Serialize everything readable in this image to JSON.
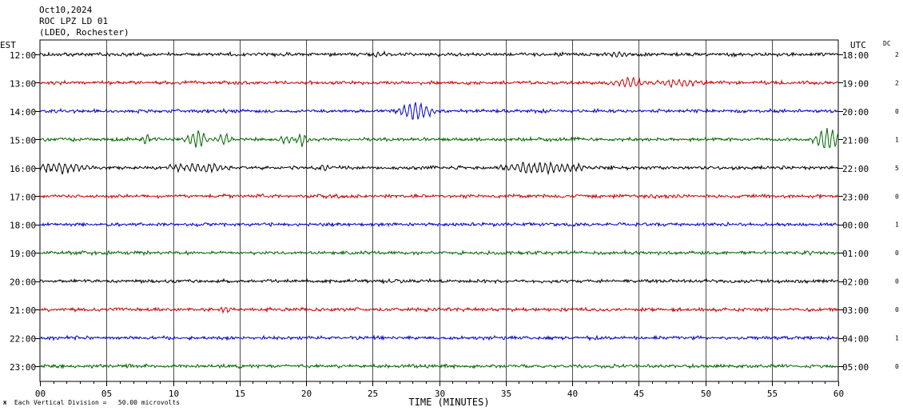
{
  "header": {
    "date": "Oct10,2024",
    "station": "ROC LPZ LD 01",
    "network": "(LDEO, Rochester)"
  },
  "chart_data": {
    "type": "line",
    "left_axis_label": "EST",
    "right_axis_label": "UTC",
    "dc_label": "DC",
    "xlabel": "TIME (MINUTES)",
    "xticks": [
      "00",
      "05",
      "10",
      "15",
      "20",
      "25",
      "30",
      "35",
      "40",
      "45",
      "50",
      "55",
      "60"
    ],
    "xlim": [
      0,
      60
    ],
    "grid": true,
    "colors": [
      "#000000",
      "#cc0000",
      "#0000cc",
      "#006600"
    ],
    "rows": [
      {
        "est": "12:00",
        "utc": "18:00",
        "dc": "2",
        "events": [
          {
            "t": 25.5,
            "amp": 4,
            "dur": 0.6
          },
          {
            "t": 43.3,
            "amp": 4,
            "dur": 0.5
          }
        ]
      },
      {
        "est": "13:00",
        "utc": "19:00",
        "dc": "2",
        "events": [
          {
            "t": 44.3,
            "amp": 7,
            "dur": 1.3
          },
          {
            "t": 48.0,
            "amp": 5,
            "dur": 1.8
          }
        ]
      },
      {
        "est": "14:00",
        "utc": "20:00",
        "dc": "0",
        "events": [
          {
            "t": 28.3,
            "amp": 12,
            "dur": 1.4
          }
        ]
      },
      {
        "est": "15:00",
        "utc": "21:00",
        "dc": "1",
        "events": [
          {
            "t": 8.0,
            "amp": 8,
            "dur": 0.3
          },
          {
            "t": 11.8,
            "amp": 12,
            "dur": 0.9
          },
          {
            "t": 13.8,
            "amp": 8,
            "dur": 0.6
          },
          {
            "t": 18.4,
            "amp": 6,
            "dur": 0.6
          },
          {
            "t": 19.7,
            "amp": 11,
            "dur": 0.4
          },
          {
            "t": 59.2,
            "amp": 16,
            "dur": 1.1
          }
        ]
      },
      {
        "est": "16:00",
        "utc": "22:00",
        "dc": "5",
        "events": [
          {
            "t": 1.5,
            "amp": 7,
            "dur": 2.5
          },
          {
            "t": 12.0,
            "amp": 6,
            "dur": 2.5
          },
          {
            "t": 21.5,
            "amp": 5,
            "dur": 0.6
          },
          {
            "t": 37.8,
            "amp": 8,
            "dur": 3.5
          }
        ]
      },
      {
        "est": "17:00",
        "utc": "23:00",
        "dc": "0",
        "events": [
          {
            "t": 45.9,
            "amp": 3,
            "dur": 0.4
          }
        ]
      },
      {
        "est": "18:00",
        "utc": "00:00",
        "dc": "1",
        "events": []
      },
      {
        "est": "19:00",
        "utc": "01:00",
        "dc": "0",
        "events": [
          {
            "t": 58.0,
            "amp": 3,
            "dur": 0.4
          }
        ]
      },
      {
        "est": "20:00",
        "utc": "02:00",
        "dc": "0",
        "events": []
      },
      {
        "est": "21:00",
        "utc": "03:00",
        "dc": "0",
        "events": [
          {
            "t": 14.0,
            "amp": 4,
            "dur": 0.5
          }
        ]
      },
      {
        "est": "22:00",
        "utc": "04:00",
        "dc": "1",
        "events": []
      },
      {
        "est": "23:00",
        "utc": "05:00",
        "dc": "0",
        "events": []
      }
    ]
  },
  "footer": {
    "mark": "Ж",
    "scale_note": "Each Vertical Division =   50.00 microvolts"
  }
}
